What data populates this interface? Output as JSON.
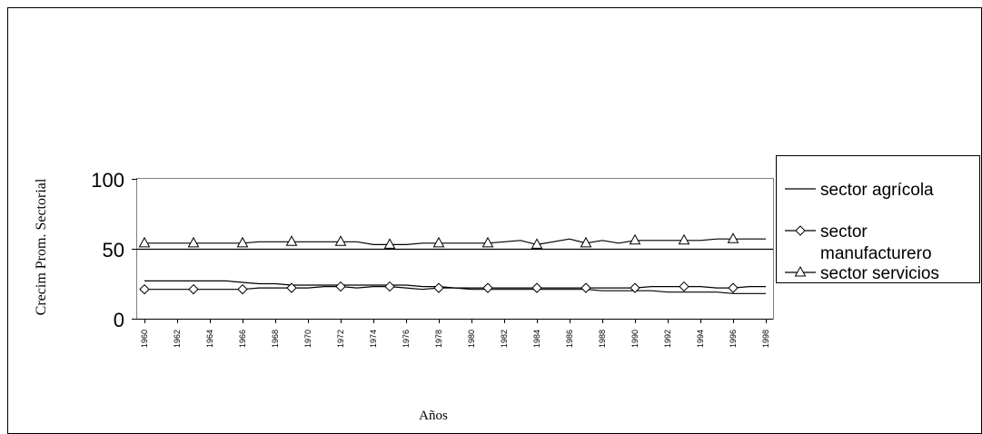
{
  "chart_data": {
    "type": "line",
    "title": "",
    "xlabel": "Años",
    "ylabel": "Crecim Prom. Sectorial",
    "ylim": [
      0,
      100
    ],
    "yticks": [
      "0",
      "50",
      "100"
    ],
    "x": [
      1960,
      1961,
      1962,
      1963,
      1964,
      1965,
      1966,
      1967,
      1968,
      1969,
      1970,
      1971,
      1972,
      1973,
      1974,
      1975,
      1976,
      1977,
      1978,
      1979,
      1980,
      1981,
      1982,
      1983,
      1984,
      1985,
      1986,
      1987,
      1988,
      1989,
      1990,
      1991,
      1992,
      1993,
      1994,
      1995,
      1996,
      1997,
      1998
    ],
    "xtick_labels": [
      "1960",
      "1962",
      "1964",
      "1966",
      "1968",
      "1970",
      "1972",
      "1974",
      "1976",
      "1978",
      "1980",
      "1982",
      "1984",
      "1986",
      "1988",
      "1990",
      "1992",
      "1994",
      "1996",
      "1998"
    ],
    "series": [
      {
        "name": "sector agrícola",
        "marker": "none",
        "color": "#000000",
        "values": [
          27,
          27,
          27,
          27,
          27,
          27,
          26,
          25,
          25,
          24,
          24,
          24,
          24,
          24,
          24,
          24,
          24,
          23,
          23,
          22,
          21,
          21,
          21,
          21,
          21,
          21,
          21,
          21,
          20,
          20,
          20,
          20,
          19,
          19,
          19,
          19,
          18,
          18,
          18
        ]
      },
      {
        "name": "sector manufacturero",
        "marker": "diamond",
        "color": "#000000",
        "values": [
          21,
          21,
          21,
          21,
          21,
          21,
          21,
          22,
          22,
          22,
          22,
          23,
          23,
          22,
          23,
          23,
          22,
          21,
          22,
          22,
          22,
          22,
          22,
          22,
          22,
          22,
          22,
          22,
          22,
          22,
          22,
          23,
          23,
          23,
          23,
          22,
          22,
          23,
          23
        ]
      },
      {
        "name": "sector servicios",
        "marker": "triangle",
        "color": "#000000",
        "values": [
          54,
          54,
          54,
          54,
          54,
          54,
          54,
          55,
          55,
          55,
          55,
          55,
          55,
          55,
          53,
          53,
          53,
          54,
          54,
          54,
          54,
          54,
          55,
          56,
          53,
          55,
          57,
          54,
          56,
          54,
          56,
          56,
          56,
          56,
          56,
          57,
          57,
          57,
          57
        ]
      }
    ],
    "reference_line": 50,
    "legend_position": "right",
    "grid": false
  }
}
